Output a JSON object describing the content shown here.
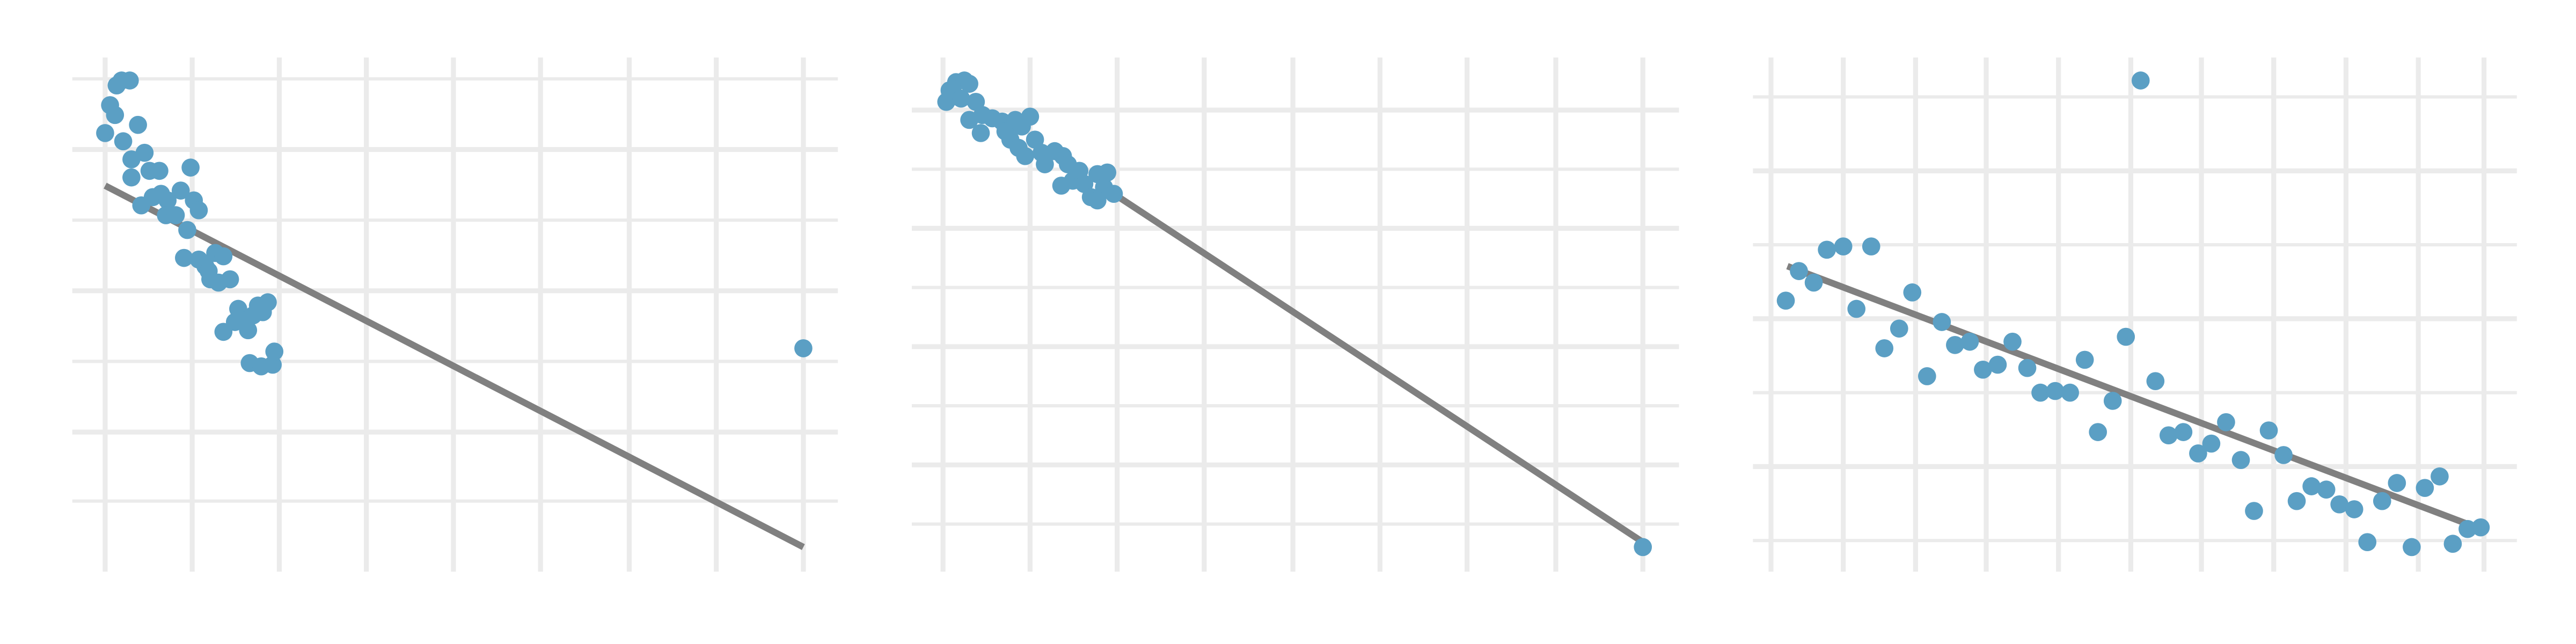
{
  "chart_data": [
    {
      "type": "scatter",
      "color": "#5b9fc4",
      "line_color": "#808080",
      "grid": true,
      "xlim": [
        44,
        510
      ],
      "ylim": [
        36,
        349
      ],
      "xticks": [
        64,
        117,
        170,
        223,
        276,
        329,
        383,
        436,
        489
      ],
      "yticks": [
        79,
        121,
        164,
        207,
        250,
        293,
        336
      ],
      "x": [
        64,
        67,
        70,
        71,
        74,
        79,
        75,
        84,
        80,
        88,
        80,
        86,
        91,
        97,
        93,
        98,
        102,
        101,
        107,
        110,
        114,
        116,
        118,
        121,
        112,
        121,
        125,
        128,
        131,
        136,
        133,
        140,
        127,
        136,
        143,
        145,
        148,
        151,
        154,
        157,
        160,
        163,
        152,
        159,
        166,
        167,
        489
      ],
      "y": [
        303,
        320,
        314,
        332,
        335,
        335,
        298,
        308,
        287,
        291,
        276,
        259,
        280,
        280,
        264,
        266,
        262,
        253,
        253,
        268,
        244,
        282,
        262,
        256,
        227,
        226,
        222,
        214,
        230,
        228,
        212,
        214,
        219,
        182,
        188,
        196,
        189,
        183,
        192,
        198,
        194,
        200,
        163,
        161,
        162,
        170,
        172
      ],
      "trend_line": {
        "x": [
          64,
          489
        ],
        "y": [
          271,
          51
        ]
      }
    },
    {
      "type": "scatter",
      "color": "#5b9fc4",
      "line_color": "#808080",
      "grid": true,
      "xlim": [
        555,
        1022
      ],
      "ylim": [
        36,
        349
      ],
      "xticks": [
        574,
        627,
        680,
        733,
        787,
        840,
        893,
        947,
        1000
      ],
      "yticks": [
        65,
        101,
        137,
        173,
        209,
        245,
        281,
        317
      ],
      "x": [
        576,
        578,
        582,
        587,
        590,
        585,
        594,
        590,
        598,
        597,
        604,
        610,
        612,
        618,
        622,
        627,
        615,
        620,
        624,
        630,
        634,
        636,
        642,
        647,
        650,
        646,
        653,
        657,
        660,
        664,
        668,
        672,
        674,
        678,
        668,
        1000
      ],
      "y": [
        322,
        329,
        334,
        335,
        333,
        324,
        322,
        311,
        314,
        303,
        312,
        310,
        304,
        311,
        307,
        313,
        299,
        294,
        289,
        299,
        291,
        284,
        292,
        289,
        284,
        271,
        274,
        280,
        272,
        264,
        278,
        270,
        279,
        266,
        262,
        51
      ],
      "trend_line": {
        "x": [
          678,
          1000
        ],
        "y": [
          266,
          54
        ]
      }
    },
    {
      "type": "scatter",
      "color": "#5b9fc4",
      "line_color": "#808080",
      "grid": true,
      "xlim": [
        1067,
        1532
      ],
      "ylim": [
        36,
        349
      ],
      "xticks": [
        1078,
        1122,
        1166,
        1209,
        1253,
        1297,
        1340,
        1384,
        1428,
        1472,
        1512
      ],
      "yticks": [
        55,
        100,
        145,
        190,
        235,
        280,
        325
      ],
      "x": [
        1087,
        1095,
        1104,
        1112,
        1122,
        1130,
        1139,
        1147,
        1156,
        1164,
        1173,
        1182,
        1190,
        1199,
        1207,
        1216,
        1225,
        1234,
        1242,
        1251,
        1260,
        1269,
        1277,
        1286,
        1294,
        1303,
        1312,
        1320,
        1329,
        1338,
        1346,
        1355,
        1364,
        1372,
        1381,
        1390,
        1398,
        1407,
        1416,
        1424,
        1433,
        1441,
        1450,
        1459,
        1468,
        1476,
        1485,
        1493,
        1502,
        1510
      ],
      "y": [
        201,
        219,
        212,
        232,
        234,
        196,
        234,
        172,
        184,
        206,
        155,
        188,
        174,
        176,
        159,
        162,
        176,
        160,
        145,
        146,
        145,
        165,
        121,
        140,
        179,
        335,
        152,
        119,
        121,
        108,
        114,
        127,
        104,
        73,
        122,
        107,
        79,
        88,
        86,
        77,
        74,
        54,
        79,
        90,
        51,
        87,
        94,
        53,
        62,
        63
      ],
      "trend_line": {
        "x": [
          1088,
          1510
        ],
        "y": [
          222,
          62
        ]
      }
    }
  ]
}
